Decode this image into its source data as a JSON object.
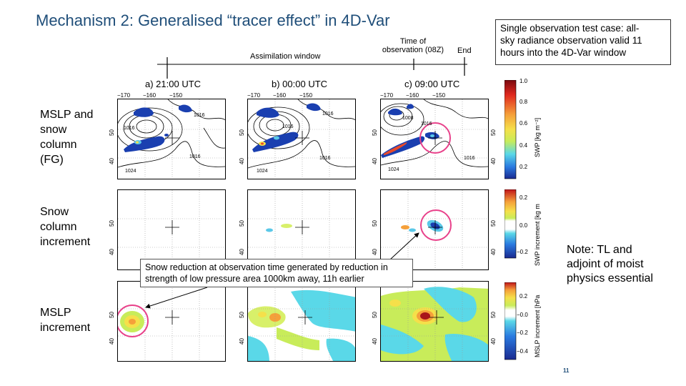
{
  "title": "Mechanism 2: Generalised “tracer effect” in 4D-Var",
  "info_box": [
    "Single observation test case: all-",
    "sky radiance observation valid 11",
    "hours into the 4D-Var window"
  ],
  "timeline": {
    "assimilation_label": "Assimilation window",
    "obs_label_line1": "Time of",
    "obs_label_line2": "observation (08Z)",
    "end_label": "End"
  },
  "columns": [
    "a) 21:00 UTC",
    "b) 00:00 UTC",
    "c) 09:00 UTC"
  ],
  "lon_ticks": [
    "−170",
    "−160",
    "−150"
  ],
  "lat_ticks": [
    "50",
    "40"
  ],
  "rows": [
    {
      "label_lines": [
        "MSLP and",
        "snow",
        "column",
        "(FG)"
      ]
    },
    {
      "label_lines": [
        "Snow",
        "column",
        "increment"
      ]
    },
    {
      "label_lines": [
        "MSLP",
        "increment"
      ]
    }
  ],
  "contour_labels": {
    "a": [
      "1016",
      "1016",
      "1024",
      "1016"
    ],
    "b": [
      "1016",
      "1016",
      "1024",
      "1016"
    ],
    "c": [
      "1008",
      "1016",
      "1024",
      "1016"
    ]
  },
  "colorbars": [
    {
      "title": "SWP [kg m⁻²]",
      "ticks": [
        "1.0",
        "0.8",
        "0.6",
        "0.4",
        "0.2"
      ]
    },
    {
      "title": "SWP increment [kg m",
      "ticks": [
        "0.2",
        "0.0",
        "−0.2"
      ]
    },
    {
      "title": "MSLP increment [hPa",
      "ticks": [
        "0.2",
        "−0.0",
        "−0.2",
        "−0.4"
      ]
    }
  ],
  "callout": "Snow reduction at observation time generated by reduction in strength of low pressure area 1000km away, 11h earlier",
  "note_lines": [
    "Note: TL and",
    "adjoint of moist",
    "physics essential"
  ],
  "page_number": "11",
  "colors": {
    "title": "#1f4e79",
    "circle": "#e8418a"
  }
}
